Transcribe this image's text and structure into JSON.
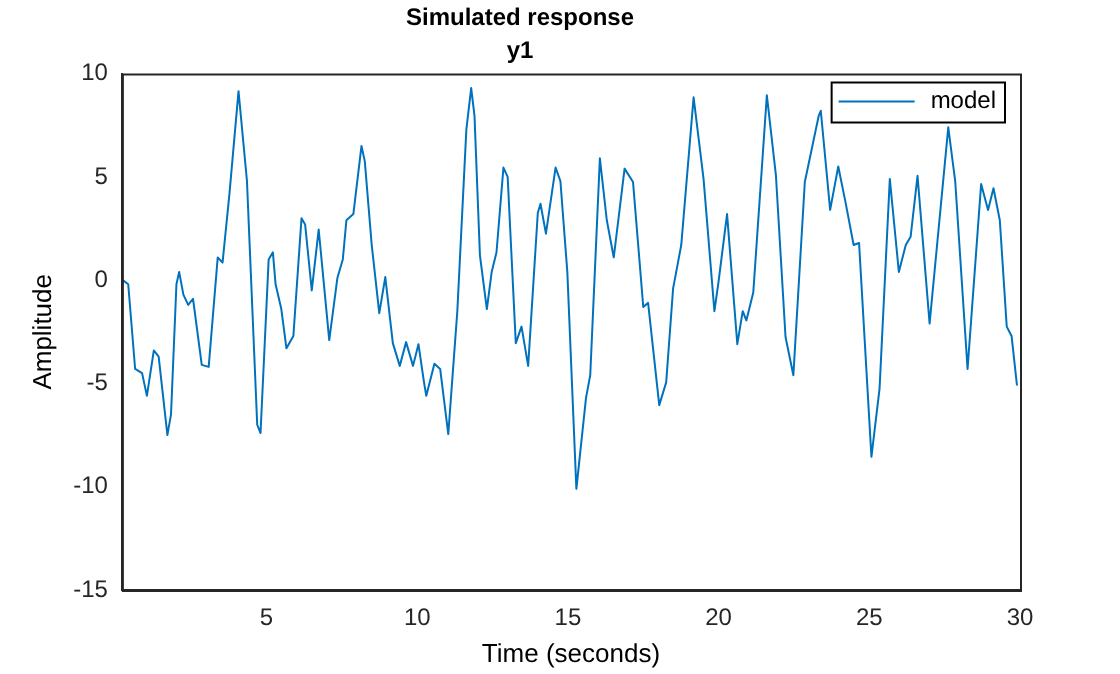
{
  "chart_data": {
    "type": "line",
    "title": "Simulated response",
    "subtitle": "y1",
    "xlabel": "Time (seconds)",
    "ylabel": "Amplitude",
    "x": [
      0.23,
      0.41,
      0.64,
      0.87,
      1.03,
      1.26,
      1.42,
      1.71,
      1.83,
      2.01,
      2.1,
      2.24,
      2.4,
      2.56,
      2.85,
      3.08,
      3.38,
      3.54,
      3.77,
      4.07,
      4.35,
      4.69,
      4.8,
      5.07,
      5.21,
      5.3,
      5.49,
      5.66,
      5.89,
      6.16,
      6.28,
      6.5,
      6.73,
      7.08,
      7.35,
      7.53,
      7.65,
      7.88,
      8.15,
      8.26,
      8.49,
      8.74,
      8.94,
      9.19,
      9.42,
      9.63,
      9.86,
      10.04,
      10.22,
      10.3,
      10.57,
      10.76,
      11.03,
      11.33,
      11.63,
      11.79,
      11.9,
      12.08,
      12.31,
      12.47,
      12.63,
      12.86,
      13.0,
      13.27,
      13.46,
      13.68,
      14.0,
      14.09,
      14.27,
      14.59,
      14.75,
      14.98,
      15.28,
      15.6,
      15.74,
      16.06,
      16.29,
      16.52,
      16.88,
      17.16,
      17.5,
      17.66,
      18.03,
      18.26,
      18.49,
      18.76,
      19.17,
      19.5,
      19.86,
      20.0,
      20.28,
      20.62,
      20.8,
      20.92,
      21.15,
      21.6,
      21.9,
      22.22,
      22.48,
      22.86,
      23.32,
      23.39,
      23.7,
      23.97,
      24.2,
      24.48,
      24.66,
      25.07,
      25.34,
      25.68,
      25.98,
      26.21,
      26.37,
      26.6,
      27.0,
      27.62,
      27.85,
      28.26,
      28.71,
      28.94,
      29.12,
      29.33,
      29.56,
      29.72,
      29.9
    ],
    "series": [
      {
        "name": "model",
        "color": "#0072bd",
        "values": [
          0.0,
          -0.2,
          -4.3,
          -4.5,
          -5.6,
          -3.4,
          -3.7,
          -7.5,
          -6.5,
          -0.2,
          0.4,
          -0.7,
          -1.2,
          -0.9,
          -4.1,
          -4.2,
          1.1,
          0.85,
          4.2,
          9.15,
          4.8,
          -7.0,
          -7.4,
          1.0,
          1.35,
          -0.2,
          -1.4,
          -3.3,
          -2.7,
          3.0,
          2.7,
          -0.5,
          2.45,
          -2.9,
          0.1,
          1.0,
          2.9,
          3.2,
          6.5,
          5.75,
          1.7,
          -1.6,
          0.15,
          -3.05,
          -4.15,
          -3.0,
          -4.15,
          -3.1,
          -4.9,
          -5.6,
          -4.05,
          -4.3,
          -7.45,
          -1.5,
          7.3,
          9.3,
          7.95,
          1.2,
          -1.4,
          0.4,
          1.35,
          5.45,
          5.0,
          -3.05,
          -2.25,
          -4.15,
          3.25,
          3.7,
          2.25,
          5.45,
          4.8,
          0.4,
          -10.1,
          -5.7,
          -4.6,
          5.9,
          2.9,
          1.1,
          5.4,
          4.75,
          -1.3,
          -1.1,
          -6.05,
          -4.95,
          -0.4,
          1.7,
          8.85,
          4.9,
          -1.5,
          -0.05,
          3.2,
          -3.1,
          -1.5,
          -1.95,
          -0.6,
          8.95,
          5.1,
          -2.75,
          -4.6,
          4.75,
          7.95,
          8.2,
          3.4,
          5.5,
          3.85,
          1.7,
          1.8,
          -8.55,
          -5.25,
          4.9,
          0.4,
          1.7,
          2.1,
          5.05,
          -2.1,
          7.4,
          4.8,
          -4.3,
          4.65,
          3.4,
          4.45,
          2.9,
          -2.25,
          -2.7,
          -5.1
        ]
      }
    ],
    "xlim": [
      0.2,
      30
    ],
    "xticks": [
      5,
      10,
      15,
      20,
      25,
      30
    ],
    "ylim": [
      -15,
      10
    ],
    "yticks": [
      -15,
      -10,
      -5,
      0,
      5,
      10
    ],
    "grid": false,
    "legend": "top right",
    "marker": "none",
    "line_style": "solid"
  }
}
